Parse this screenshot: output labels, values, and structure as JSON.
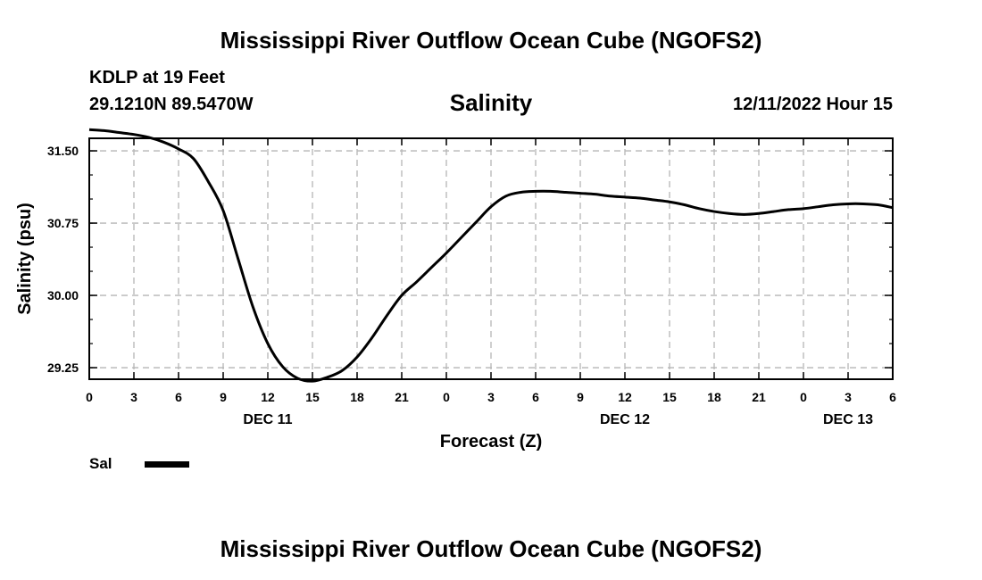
{
  "header": {
    "title": "Mississippi River Outflow Ocean Cube (NGOFS2)",
    "station": "KDLP at 19 Feet",
    "coordinates": "29.1210N  89.5470W",
    "variable_title": "Salinity",
    "datetime": "12/11/2022 Hour 15"
  },
  "legend": {
    "label": "Sal",
    "color": "#000000"
  },
  "footer": {
    "title": "Mississippi River Outflow Ocean Cube (NGOFS2)"
  },
  "chart_data": {
    "type": "line",
    "title": "Salinity",
    "xlabel": "Forecast (Z)",
    "ylabel": "Salinity (psu)",
    "xlim": [
      0,
      54
    ],
    "ylim": [
      29.13,
      31.63
    ],
    "grid": true,
    "x_ticks": [
      0,
      3,
      6,
      9,
      12,
      15,
      18,
      21,
      24,
      27,
      30,
      33,
      36,
      39,
      42,
      45,
      48,
      51,
      54
    ],
    "x_tick_labels": [
      "0",
      "3",
      "6",
      "9",
      "12",
      "15",
      "18",
      "21",
      "0",
      "3",
      "6",
      "9",
      "12",
      "15",
      "18",
      "21",
      "0",
      "3",
      "6"
    ],
    "y_ticks": [
      29.25,
      30.0,
      30.75,
      31.5
    ],
    "y_tick_labels": [
      "29.25",
      "30.00",
      "30.75",
      "31.50"
    ],
    "date_labels": [
      {
        "x": 12,
        "label": "DEC 11"
      },
      {
        "x": 36,
        "label": "DEC 12"
      },
      {
        "x": 51,
        "label": "DEC 13"
      }
    ],
    "series": [
      {
        "name": "Sal",
        "color": "#000000",
        "x": [
          0,
          1,
          2,
          3,
          4,
          5,
          6,
          7,
          8,
          9,
          10,
          11,
          12,
          13,
          14,
          15,
          16,
          17,
          18,
          19,
          20,
          21,
          22,
          23,
          24,
          25,
          26,
          27,
          28,
          29,
          30,
          31,
          32,
          33,
          34,
          35,
          36,
          37,
          38,
          39,
          40,
          41,
          42,
          43,
          44,
          45,
          46,
          47,
          48,
          49,
          50,
          51,
          52,
          53,
          54
        ],
        "y": [
          31.72,
          31.71,
          31.69,
          31.67,
          31.64,
          31.59,
          31.52,
          31.42,
          31.18,
          30.88,
          30.38,
          29.88,
          29.5,
          29.26,
          29.14,
          29.11,
          29.15,
          29.22,
          29.36,
          29.56,
          29.79,
          30.0,
          30.14,
          30.29,
          30.44,
          30.6,
          30.76,
          30.92,
          31.03,
          31.07,
          31.08,
          31.08,
          31.07,
          31.06,
          31.05,
          31.03,
          31.02,
          31.01,
          30.99,
          30.97,
          30.94,
          30.9,
          30.87,
          30.85,
          30.84,
          30.85,
          30.87,
          30.89,
          30.9,
          30.92,
          30.94,
          30.95,
          30.95,
          30.94,
          30.91
        ]
      }
    ]
  }
}
